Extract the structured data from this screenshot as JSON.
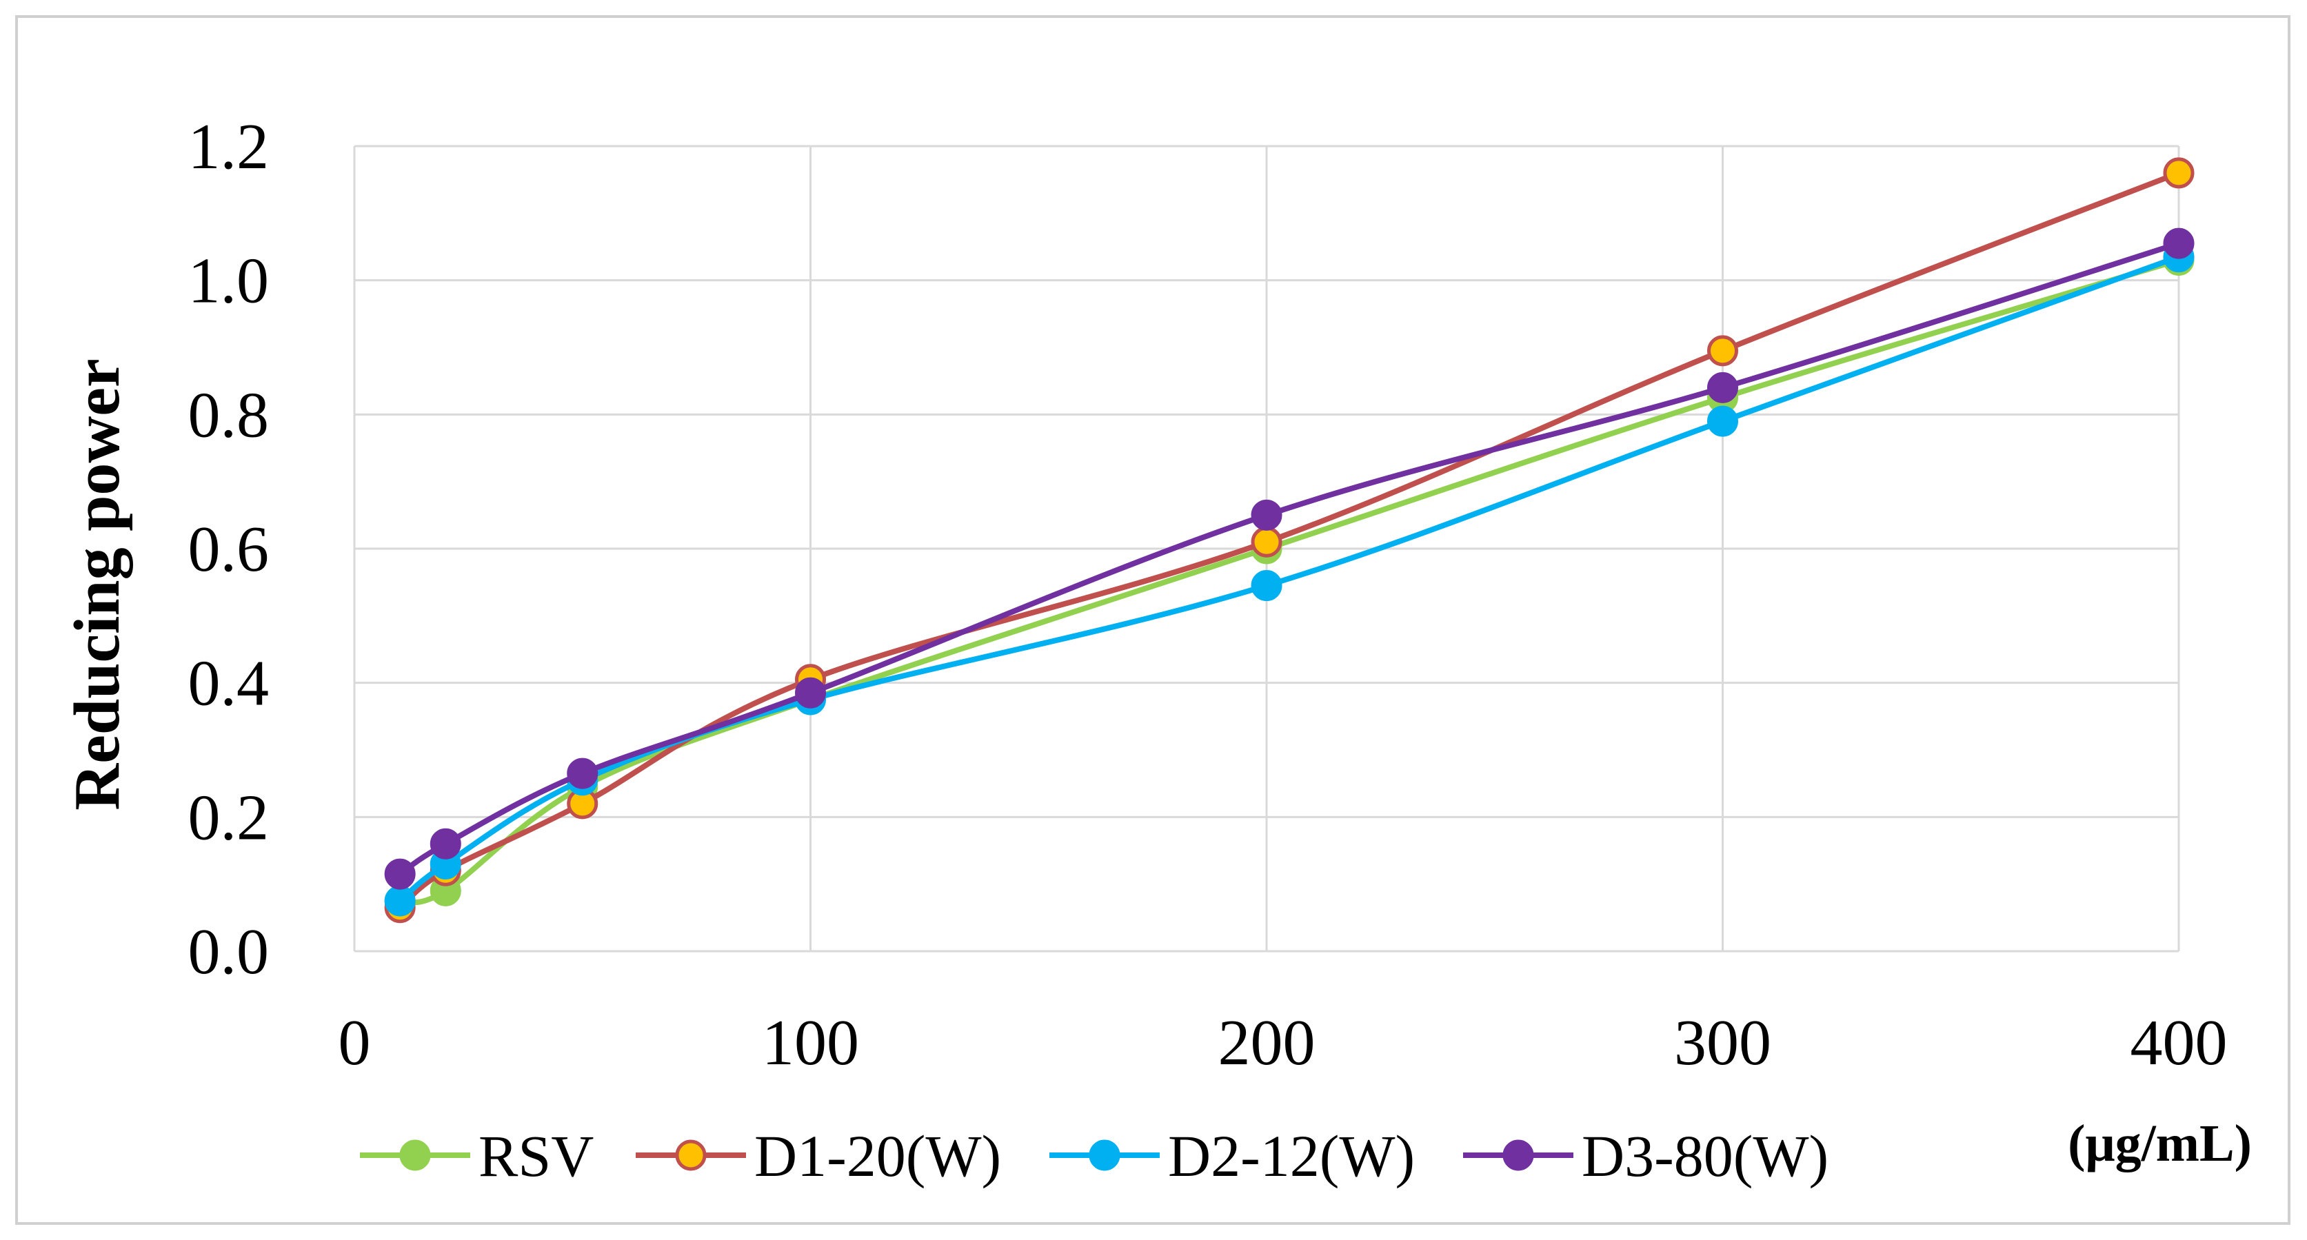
{
  "chart_data": {
    "type": "line",
    "title": "",
    "xlabel": "(μg/mL)",
    "ylabel": "Reducing power",
    "xlim": [
      0,
      400
    ],
    "ylim": [
      0,
      1.2
    ],
    "xticks": [
      0,
      100,
      200,
      300,
      400
    ],
    "xtick_labels": [
      "0",
      "100",
      "200",
      "300",
      "400"
    ],
    "yticks": [
      0,
      0.2,
      0.4,
      0.6,
      0.8,
      1.0,
      1.2
    ],
    "ytick_labels": [
      "0.0",
      "0.2",
      "0.4",
      "0.6",
      "0.8",
      "1.0",
      "1.2"
    ],
    "grid": true,
    "legend_position": "bottom",
    "x": [
      10,
      20,
      50,
      100,
      200,
      300,
      400
    ],
    "series": [
      {
        "name": "RSV",
        "color": "#92d050",
        "marker_fill": "#92d050",
        "marker_edge": "#92d050",
        "values": [
          0.075,
          0.09,
          0.245,
          0.375,
          0.6,
          0.825,
          1.03
        ]
      },
      {
        "name": "D1-20(W)",
        "color": "#c0504d",
        "marker_fill": "#ffc000",
        "marker_edge": "#c0504d",
        "values": [
          0.065,
          0.12,
          0.22,
          0.405,
          0.61,
          0.895,
          1.16
        ]
      },
      {
        "name": "D2-12(W)",
        "color": "#00b0f0",
        "marker_fill": "#00b0f0",
        "marker_edge": "#00b0f0",
        "values": [
          0.075,
          0.13,
          0.255,
          0.375,
          0.545,
          0.79,
          1.035
        ]
      },
      {
        "name": "D3-80(W)",
        "color": "#7030a0",
        "marker_fill": "#7030a0",
        "marker_edge": "#7030a0",
        "values": [
          0.115,
          0.16,
          0.265,
          0.385,
          0.65,
          0.84,
          1.055
        ]
      }
    ]
  }
}
